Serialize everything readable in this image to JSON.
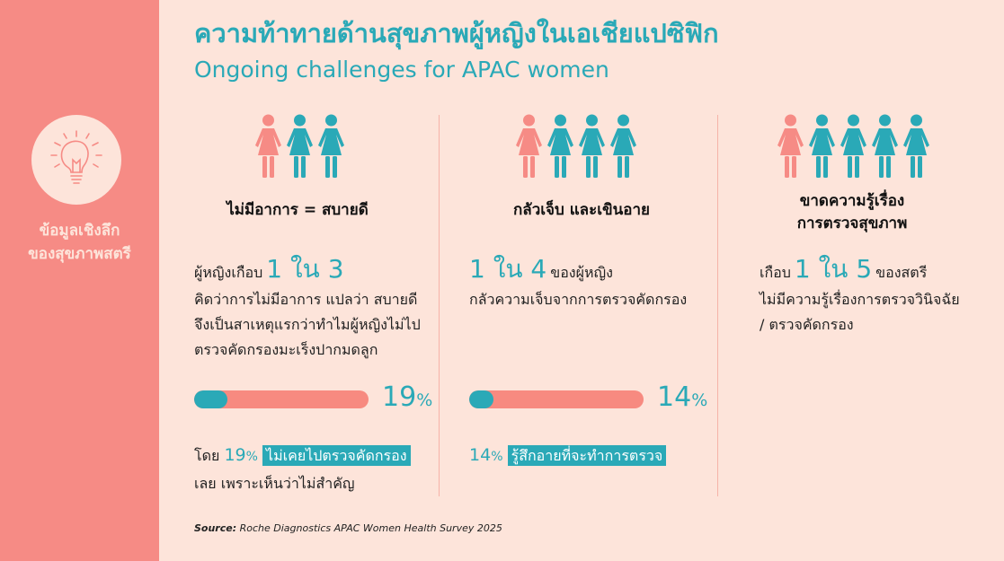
{
  "colors": {
    "accent": "#2aa9b7",
    "coral": "#f68b85",
    "background": "#fde4da"
  },
  "sidebar": {
    "icon": "lightbulb-icon",
    "line1": "ข้อมูลเชิงลึก",
    "line2": "ของสุขภาพสตรี"
  },
  "title": {
    "thai": "ความท้าทายด้านสุขภาพผู้หญิงในเอเชียแปซิฟิก",
    "english": "Ongoing challenges for APAC women"
  },
  "columns": [
    {
      "icon_counts": {
        "highlighted": 1,
        "total": 3
      },
      "heading": "ไม่มีอาการ = สบายดี",
      "stat_prefix": "ผู้หญิงเกือบ",
      "stat_big": "1 ใน 3",
      "stat_lines": [
        "คิดว่าการไม่มีอาการ แปลว่า สบายดี",
        "จึงเป็นสาเหตุแรกว่าทำไมผู้หญิงไม่ไป",
        "ตรวจคัดกรองมะเร็งปากมดลูก"
      ],
      "bar_value": 19,
      "bar_number": "19",
      "bar_unit": "%",
      "note_prefix": "โดย",
      "note_number": "19",
      "note_unit": "%",
      "note_highlight": "ไม่เคยไปตรวจคัดกรอง",
      "note_line2": "เลย เพราะเห็นว่าไม่สำคัญ"
    },
    {
      "icon_counts": {
        "highlighted": 1,
        "total": 4
      },
      "heading": "กลัวเจ็บ และเขินอาย",
      "stat_big": "1 ใน 4",
      "stat_suffix": "ของผู้หญิง",
      "stat_lines": [
        "กลัวความเจ็บจากการตรวจคัดกรอง"
      ],
      "bar_value": 14,
      "bar_number": "14",
      "bar_unit": "%",
      "note_number": "14",
      "note_unit": "%",
      "note_highlight": "รู้สึกอายที่จะทำการตรวจ"
    },
    {
      "icon_counts": {
        "highlighted": 1,
        "total": 5
      },
      "heading_line1": "ขาดความรู้เรื่อง",
      "heading_line2": "การตรวจสุขภาพ",
      "stat_prefix": "เกือบ",
      "stat_big": "1 ใน 5",
      "stat_suffix": "ของสตรี",
      "stat_lines": [
        "ไม่มีความรู้เรื่องการตรวจวินิจฉัย",
        "/ ตรวจคัดกรอง"
      ]
    }
  ],
  "source": {
    "label": "Source:",
    "text": "Roche Diagnostics APAC Women Health Survey 2025"
  }
}
